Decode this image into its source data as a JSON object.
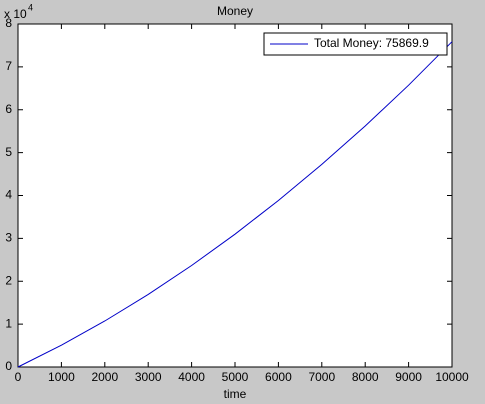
{
  "chart_data": {
    "type": "line",
    "title": "Money",
    "x_label": "time",
    "y_multiplier_base": "x 10",
    "y_multiplier_exponent": "4",
    "x": [
      0,
      1000,
      2000,
      3000,
      4000,
      5000,
      6000,
      7000,
      8000,
      9000,
      10000
    ],
    "series": [
      {
        "name": "Total Money: 75869.9",
        "color": "#0000c8",
        "values": [
          0,
          0.509,
          1.073,
          1.692,
          2.367,
          3.098,
          3.883,
          4.725,
          5.621,
          6.573,
          7.587
        ]
      }
    ],
    "xlim": [
      0,
      10000
    ],
    "xticks": [
      0,
      1000,
      2000,
      3000,
      4000,
      5000,
      6000,
      7000,
      8000,
      9000,
      10000
    ],
    "ylim": [
      0,
      8
    ],
    "yticks": [
      0,
      1,
      2,
      3,
      4,
      5,
      6,
      7,
      8
    ],
    "grid": false,
    "legend": "upper right"
  }
}
